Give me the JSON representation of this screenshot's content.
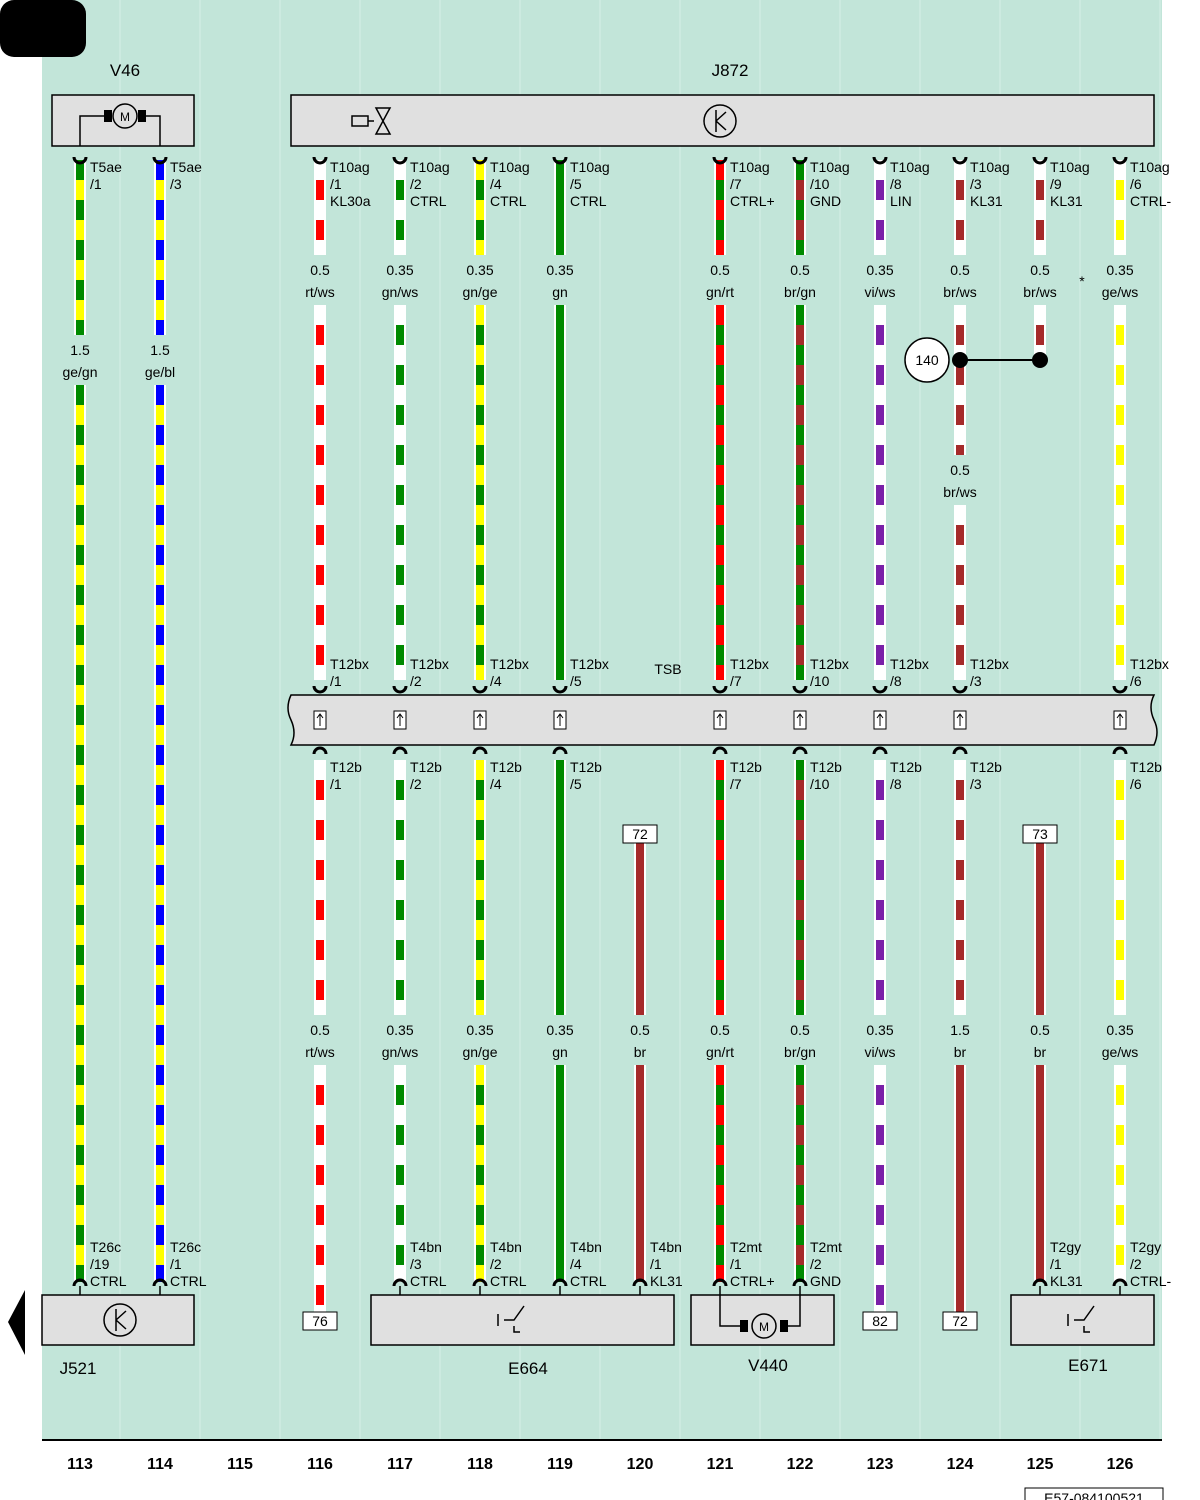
{
  "components": {
    "v46": "V46",
    "j872": "J872",
    "tsb": "TSB",
    "j521": "J521",
    "e664": "E664",
    "v440": "V440",
    "e671": "E671"
  },
  "splice_ref": "140",
  "note": "*",
  "columns": [
    113,
    114,
    115,
    116,
    117,
    118,
    119,
    120,
    121,
    122,
    123,
    124,
    125,
    126
  ],
  "footer_code": "E57-084100521",
  "wires": [
    {
      "column": 113,
      "top": {
        "name": "T5ae",
        "pin": "/1"
      },
      "sections": [
        {
          "size": "1.5",
          "color": "ge/gn"
        }
      ],
      "bottom": {
        "name": "T26c",
        "pin": "/19",
        "signal": "CTRL"
      }
    },
    {
      "column": 114,
      "top": {
        "name": "T5ae",
        "pin": "/3"
      },
      "sections": [
        {
          "size": "1.5",
          "color": "ge/bl"
        }
      ],
      "bottom": {
        "name": "T26c",
        "pin": "/1",
        "signal": "CTRL"
      }
    },
    {
      "column": 116,
      "top": {
        "name": "T10ag",
        "pin": "/1",
        "signal": "KL30a"
      },
      "sections": [
        {
          "size": "0.5",
          "color": "rt/ws"
        },
        {
          "size": "0.5",
          "color": "rt/ws"
        }
      ],
      "tsb_top": {
        "name": "T12bx",
        "pin": "/1"
      },
      "tsb_bottom": {
        "name": "T12b",
        "pin": "/1"
      },
      "bottom_ref": "76"
    },
    {
      "column": 117,
      "top": {
        "name": "T10ag",
        "pin": "/2",
        "signal": "CTRL"
      },
      "sections": [
        {
          "size": "0.35",
          "color": "gn/ws"
        },
        {
          "size": "0.35",
          "color": "gn/ws"
        }
      ],
      "tsb_top": {
        "name": "T12bx",
        "pin": "/2"
      },
      "tsb_bottom": {
        "name": "T12b",
        "pin": "/2"
      },
      "bottom": {
        "name": "T4bn",
        "pin": "/3",
        "signal": "CTRL"
      }
    },
    {
      "column": 118,
      "top": {
        "name": "T10ag",
        "pin": "/4",
        "signal": "CTRL"
      },
      "sections": [
        {
          "size": "0.35",
          "color": "gn/ge"
        },
        {
          "size": "0.35",
          "color": "gn/ge"
        }
      ],
      "tsb_top": {
        "name": "T12bx",
        "pin": "/4"
      },
      "tsb_bottom": {
        "name": "T12b",
        "pin": "/4"
      },
      "bottom": {
        "name": "T4bn",
        "pin": "/2",
        "signal": "CTRL"
      }
    },
    {
      "column": 119,
      "top": {
        "name": "T10ag",
        "pin": "/5",
        "signal": "CTRL"
      },
      "sections": [
        {
          "size": "0.35",
          "color": "gn"
        },
        {
          "size": "0.35",
          "color": "gn"
        }
      ],
      "tsb_top": {
        "name": "T12bx",
        "pin": "/5"
      },
      "tsb_bottom": {
        "name": "T12b",
        "pin": "/5"
      },
      "bottom": {
        "name": "T4bn",
        "pin": "/4",
        "signal": "CTRL"
      }
    },
    {
      "column": 120,
      "top_ref": "72",
      "sections": [
        {
          "size": "0.5",
          "color": "br"
        }
      ],
      "bottom": {
        "name": "T4bn",
        "pin": "/1",
        "signal": "KL31"
      }
    },
    {
      "column": 121,
      "top": {
        "name": "T10ag",
        "pin": "/7",
        "signal": "CTRL+"
      },
      "sections": [
        {
          "size": "0.5",
          "color": "gn/rt"
        },
        {
          "size": "0.5",
          "color": "gn/rt"
        }
      ],
      "tsb_top": {
        "name": "T12bx",
        "pin": "/7"
      },
      "tsb_bottom": {
        "name": "T12b",
        "pin": "/7"
      },
      "bottom": {
        "name": "T2mt",
        "pin": "/1",
        "signal": "CTRL+"
      }
    },
    {
      "column": 122,
      "top": {
        "name": "T10ag",
        "pin": "/10",
        "signal": "GND"
      },
      "sections": [
        {
          "size": "0.5",
          "color": "br/gn"
        },
        {
          "size": "0.5",
          "color": "br/gn"
        }
      ],
      "tsb_top": {
        "name": "T12bx",
        "pin": "/10"
      },
      "tsb_bottom": {
        "name": "T12b",
        "pin": "/10"
      },
      "bottom": {
        "name": "T2mt",
        "pin": "/2",
        "signal": "GND"
      }
    },
    {
      "column": 123,
      "top": {
        "name": "T10ag",
        "pin": "/8",
        "signal": "LIN"
      },
      "sections": [
        {
          "size": "0.35",
          "color": "vi/ws"
        },
        {
          "size": "0.35",
          "color": "vi/ws"
        }
      ],
      "tsb_top": {
        "name": "T12bx",
        "pin": "/8"
      },
      "tsb_bottom": {
        "name": "T12b",
        "pin": "/8"
      },
      "bottom_ref": "82"
    },
    {
      "column": 124,
      "top": {
        "name": "T10ag",
        "pin": "/3",
        "signal": "KL31"
      },
      "sections": [
        {
          "size": "0.5",
          "color": "br/ws"
        },
        {
          "size": "0.5",
          "color": "br/ws"
        },
        {
          "size": "1.5",
          "color": "br"
        }
      ],
      "tsb_top": {
        "name": "T12bx",
        "pin": "/3"
      },
      "tsb_bottom": {
        "name": "T12b",
        "pin": "/3"
      },
      "bottom_ref": "72"
    },
    {
      "column": 125,
      "top": {
        "name": "T10ag",
        "pin": "/9",
        "signal": "KL31"
      },
      "top_ref": "73",
      "sections": [
        {
          "size": "0.5",
          "color": "br/ws"
        },
        {
          "size": "0.5",
          "color": "br"
        }
      ],
      "bottom": {
        "name": "T2gy",
        "pin": "/1",
        "signal": "KL31"
      }
    },
    {
      "column": 126,
      "top": {
        "name": "T10ag",
        "pin": "/6",
        "signal": "CTRL-"
      },
      "sections": [
        {
          "size": "0.35",
          "color": "ge/ws"
        },
        {
          "size": "0.35",
          "color": "ge/ws"
        }
      ],
      "tsb_top": {
        "name": "T12bx",
        "pin": "/6"
      },
      "tsb_bottom": {
        "name": "T12b",
        "pin": "/6"
      },
      "bottom": {
        "name": "T2gy",
        "pin": "/2",
        "signal": "CTRL-"
      }
    }
  ]
}
